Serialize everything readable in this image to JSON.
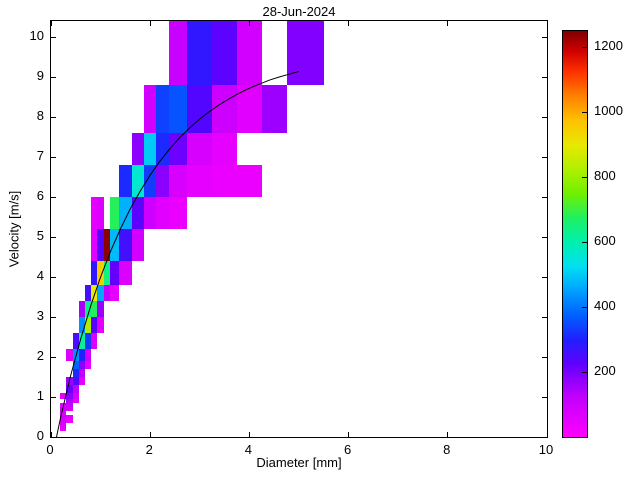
{
  "figure": {
    "background": "#ffffff",
    "axis_color": "#000000"
  },
  "chart_data": {
    "type": "heatmap",
    "title": "28-Jun-2024",
    "xlabel": "Diameter [mm]",
    "ylabel": "Velocity [m/s]",
    "xlim": [
      0,
      10
    ],
    "ylim": [
      0,
      10.4
    ],
    "x_ticks": [
      0,
      2,
      4,
      6,
      8,
      10
    ],
    "y_ticks": [
      0,
      1,
      2,
      3,
      4,
      5,
      6,
      7,
      8,
      9,
      10
    ],
    "grid": false,
    "legend": false,
    "colorbar": {
      "vmin": 0,
      "vmax": 1250,
      "ticks": [
        200,
        400,
        600,
        800,
        1000,
        1200
      ],
      "position": "right"
    },
    "colormap_stops": [
      [
        0.0,
        "#ff00ff"
      ],
      [
        0.1,
        "#c000ff"
      ],
      [
        0.18,
        "#6000ff"
      ],
      [
        0.24,
        "#2020ff"
      ],
      [
        0.3,
        "#0060ff"
      ],
      [
        0.36,
        "#00a0ff"
      ],
      [
        0.42,
        "#00e0f0"
      ],
      [
        0.48,
        "#00f0b0"
      ],
      [
        0.54,
        "#20f060"
      ],
      [
        0.6,
        "#70f000"
      ],
      [
        0.66,
        "#b0f000"
      ],
      [
        0.72,
        "#e8e800"
      ],
      [
        0.78,
        "#ffc000"
      ],
      [
        0.84,
        "#ff8000"
      ],
      [
        0.9,
        "#ff3000"
      ],
      [
        0.95,
        "#d00000"
      ],
      [
        1.0,
        "#7f0000"
      ]
    ],
    "curve": {
      "name": "terminal-velocity-fit",
      "color": "#000000",
      "points": [
        [
          0.11,
          0.0
        ],
        [
          0.2,
          0.52
        ],
        [
          0.4,
          1.55
        ],
        [
          0.6,
          2.46
        ],
        [
          0.8,
          3.28
        ],
        [
          1.0,
          4.0
        ],
        [
          1.2,
          4.64
        ],
        [
          1.4,
          5.2
        ],
        [
          1.6,
          5.71
        ],
        [
          1.8,
          6.15
        ],
        [
          2.0,
          6.55
        ],
        [
          2.2,
          6.9
        ],
        [
          2.4,
          7.21
        ],
        [
          2.6,
          7.49
        ],
        [
          2.8,
          7.73
        ],
        [
          3.0,
          7.95
        ],
        [
          3.2,
          8.14
        ],
        [
          3.4,
          8.31
        ],
        [
          3.6,
          8.46
        ],
        [
          3.8,
          8.6
        ],
        [
          4.0,
          8.72
        ],
        [
          4.2,
          8.82
        ],
        [
          4.4,
          8.92
        ],
        [
          4.6,
          9.0
        ],
        [
          4.8,
          9.07
        ],
        [
          5.0,
          9.14
        ]
      ]
    },
    "cells": [
      [
        0.187,
        0.312,
        0.15,
        0.25,
        40
      ],
      [
        0.187,
        0.312,
        0.25,
        0.35,
        60
      ],
      [
        0.187,
        0.312,
        0.35,
        0.45,
        80
      ],
      [
        0.312,
        0.437,
        0.35,
        0.45,
        40
      ],
      [
        0.187,
        0.312,
        0.45,
        0.55,
        90
      ],
      [
        0.312,
        0.437,
        0.45,
        0.55,
        60
      ],
      [
        0.187,
        0.312,
        0.55,
        0.65,
        70
      ],
      [
        0.187,
        0.312,
        0.65,
        0.75,
        100
      ],
      [
        0.312,
        0.437,
        0.65,
        0.75,
        80
      ],
      [
        0.187,
        0.312,
        0.75,
        0.85,
        60
      ],
      [
        0.312,
        0.437,
        0.75,
        0.85,
        110
      ],
      [
        0.312,
        0.437,
        0.85,
        0.95,
        140
      ],
      [
        0.437,
        0.562,
        0.85,
        0.95,
        50
      ],
      [
        0.187,
        0.312,
        0.95,
        1.1,
        50
      ],
      [
        0.312,
        0.437,
        0.95,
        1.1,
        180
      ],
      [
        0.437,
        0.562,
        0.95,
        1.1,
        80
      ],
      [
        0.312,
        0.437,
        1.1,
        1.3,
        220
      ],
      [
        0.437,
        0.562,
        1.1,
        1.3,
        120
      ],
      [
        0.312,
        0.437,
        1.3,
        1.5,
        160
      ],
      [
        0.437,
        0.562,
        1.3,
        1.5,
        240
      ],
      [
        0.562,
        0.687,
        1.3,
        1.5,
        60
      ],
      [
        0.437,
        0.562,
        1.5,
        1.7,
        310
      ],
      [
        0.562,
        0.687,
        1.5,
        1.7,
        120
      ],
      [
        0.437,
        0.562,
        1.7,
        1.9,
        380
      ],
      [
        0.562,
        0.687,
        1.7,
        1.9,
        180
      ],
      [
        0.687,
        0.812,
        1.7,
        1.9,
        50
      ],
      [
        0.312,
        0.437,
        1.9,
        2.2,
        70
      ],
      [
        0.437,
        0.562,
        1.9,
        2.2,
        430
      ],
      [
        0.562,
        0.687,
        1.9,
        2.2,
        300
      ],
      [
        0.687,
        0.812,
        1.9,
        2.2,
        90
      ],
      [
        0.437,
        0.562,
        2.2,
        2.6,
        250
      ],
      [
        0.562,
        0.687,
        2.2,
        2.6,
        620
      ],
      [
        0.687,
        0.812,
        2.2,
        2.6,
        330
      ],
      [
        0.812,
        0.937,
        2.2,
        2.6,
        70
      ],
      [
        0.562,
        0.687,
        2.6,
        3.0,
        430
      ],
      [
        0.687,
        0.812,
        2.6,
        3.0,
        820
      ],
      [
        0.812,
        0.937,
        2.6,
        3.0,
        240
      ],
      [
        0.937,
        1.062,
        2.6,
        3.0,
        60
      ],
      [
        0.562,
        0.687,
        3.0,
        3.4,
        150
      ],
      [
        0.687,
        0.812,
        3.0,
        3.4,
        640
      ],
      [
        0.812,
        0.937,
        3.0,
        3.4,
        680
      ],
      [
        0.937,
        1.062,
        3.0,
        3.4,
        160
      ],
      [
        0.687,
        0.812,
        3.4,
        3.8,
        260
      ],
      [
        0.812,
        0.937,
        3.4,
        3.8,
        900
      ],
      [
        0.937,
        1.062,
        3.4,
        3.8,
        460
      ],
      [
        1.062,
        1.187,
        3.4,
        3.8,
        120
      ],
      [
        1.187,
        1.375,
        3.4,
        3.8,
        50
      ],
      [
        0.812,
        0.937,
        3.8,
        4.4,
        280
      ],
      [
        0.937,
        1.062,
        3.8,
        4.4,
        950
      ],
      [
        1.062,
        1.187,
        3.8,
        4.4,
        640
      ],
      [
        1.187,
        1.375,
        3.8,
        4.4,
        220
      ],
      [
        1.375,
        1.625,
        3.8,
        4.4,
        70
      ],
      [
        0.812,
        0.937,
        4.4,
        5.2,
        60
      ],
      [
        0.937,
        1.062,
        4.4,
        5.2,
        240
      ],
      [
        1.062,
        1.187,
        4.4,
        5.2,
        1240
      ],
      [
        1.187,
        1.375,
        4.4,
        5.2,
        480
      ],
      [
        1.375,
        1.625,
        4.4,
        5.2,
        260
      ],
      [
        1.625,
        1.875,
        4.4,
        5.2,
        90
      ],
      [
        0.812,
        0.937,
        5.2,
        6.0,
        50
      ],
      [
        0.937,
        1.062,
        5.2,
        6.0,
        70
      ],
      [
        1.187,
        1.375,
        5.2,
        6.0,
        680
      ],
      [
        1.375,
        1.625,
        5.2,
        6.0,
        470
      ],
      [
        1.625,
        1.875,
        5.2,
        6.0,
        230
      ],
      [
        1.875,
        2.125,
        5.2,
        6.0,
        100
      ],
      [
        2.125,
        2.375,
        5.2,
        6.0,
        60
      ],
      [
        2.375,
        2.75,
        5.2,
        6.0,
        40
      ],
      [
        1.375,
        1.625,
        6.0,
        6.8,
        310
      ],
      [
        1.625,
        1.875,
        6.0,
        6.8,
        560
      ],
      [
        1.875,
        2.125,
        6.0,
        6.8,
        330
      ],
      [
        2.125,
        2.375,
        6.0,
        6.8,
        180
      ],
      [
        2.375,
        2.75,
        6.0,
        6.8,
        80
      ],
      [
        2.75,
        3.25,
        6.0,
        6.8,
        50
      ],
      [
        3.25,
        3.75,
        6.0,
        6.8,
        40
      ],
      [
        3.75,
        4.25,
        6.0,
        6.8,
        40
      ],
      [
        1.625,
        1.875,
        6.8,
        7.6,
        180
      ],
      [
        1.875,
        2.125,
        6.8,
        7.6,
        500
      ],
      [
        2.125,
        2.375,
        6.8,
        7.6,
        310
      ],
      [
        2.375,
        2.75,
        6.8,
        7.6,
        210
      ],
      [
        2.75,
        3.25,
        6.8,
        7.6,
        80
      ],
      [
        3.25,
        3.75,
        6.8,
        7.6,
        50
      ],
      [
        1.875,
        2.125,
        7.6,
        8.8,
        90
      ],
      [
        2.125,
        2.375,
        7.6,
        8.8,
        340
      ],
      [
        2.375,
        2.75,
        7.6,
        8.8,
        360
      ],
      [
        2.75,
        3.25,
        7.6,
        8.8,
        240
      ],
      [
        3.25,
        3.75,
        7.6,
        8.8,
        100
      ],
      [
        3.75,
        4.25,
        7.6,
        8.8,
        60
      ],
      [
        4.25,
        4.75,
        7.6,
        8.8,
        160
      ],
      [
        2.375,
        2.75,
        8.8,
        10.4,
        110
      ],
      [
        2.75,
        3.25,
        8.8,
        10.4,
        280
      ],
      [
        3.25,
        3.75,
        8.8,
        10.4,
        230
      ],
      [
        3.75,
        4.25,
        8.8,
        10.4,
        90
      ],
      [
        4.75,
        5.5,
        8.8,
        10.4,
        190
      ]
    ]
  }
}
